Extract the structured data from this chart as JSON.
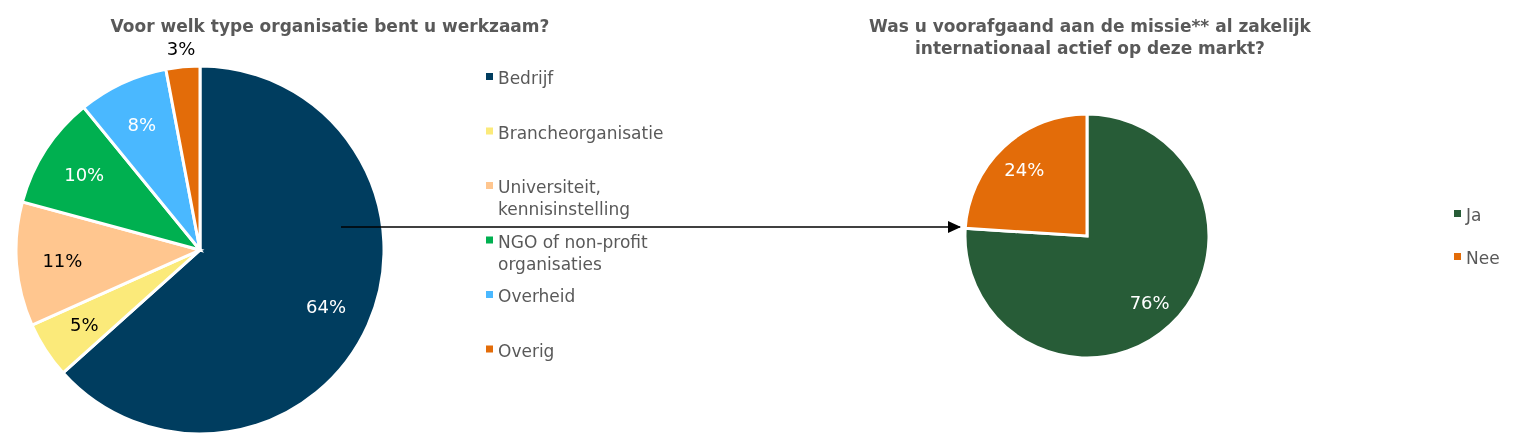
{
  "chart_data": [
    {
      "type": "pie",
      "title": "Voor welk type organisatie bent u werkzaam?",
      "categories": [
        "Bedrijf",
        "Brancheorganisatie",
        "Universiteit, kennisinstelling",
        "NGO of non-profit organisaties",
        "Overheid",
        "Overig"
      ],
      "values": [
        64,
        5,
        11,
        10,
        8,
        3
      ],
      "value_labels": [
        "64%",
        "5%",
        "11%",
        "10%",
        "8%",
        "3%"
      ],
      "colors": [
        "#003d5f",
        "#fbea7a",
        "#ffc68f",
        "#00b050",
        "#4ab8ff",
        "#e36c09"
      ],
      "legend": "right"
    },
    {
      "type": "pie",
      "title": "Was u voorafgaand aan de missie** al zakelijk internationaal actief op deze markt?",
      "categories": [
        "Ja",
        "Nee"
      ],
      "values": [
        76,
        24
      ],
      "value_labels": [
        "76%",
        "24%"
      ],
      "colors": [
        "#275c37",
        "#e36c09"
      ],
      "legend": "right"
    }
  ]
}
